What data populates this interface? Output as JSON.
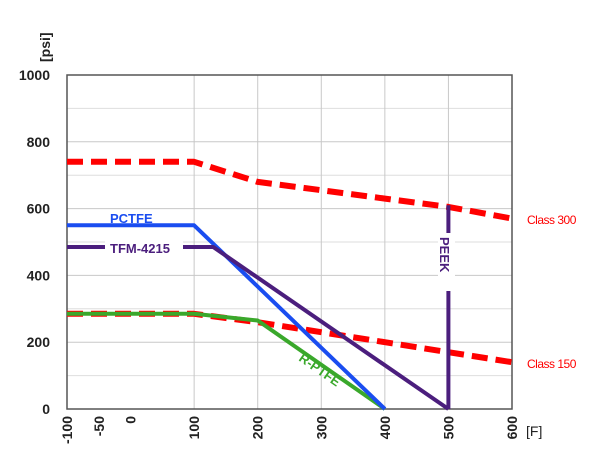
{
  "chart_data": {
    "type": "line",
    "title": "",
    "xlabel": "[F]",
    "ylabel": "[psi]",
    "xlim": [
      -100,
      600
    ],
    "ylim": [
      0,
      1000
    ],
    "x_ticks": [
      "-100",
      "-50",
      "0",
      "100",
      "200",
      "300",
      "400",
      "500",
      "600"
    ],
    "y_ticks": [
      "0",
      "200",
      "400",
      "600",
      "800",
      "1000"
    ],
    "grid": true,
    "series": [
      {
        "name": "Class 300",
        "color": "#ff0000",
        "style": "dashed",
        "points": [
          [
            -100,
            740
          ],
          [
            100,
            740
          ],
          [
            200,
            680
          ],
          [
            300,
            655
          ],
          [
            400,
            630
          ],
          [
            500,
            605
          ],
          [
            600,
            570
          ]
        ]
      },
      {
        "name": "Class 150",
        "color": "#ff0000",
        "style": "dashed",
        "points": [
          [
            -100,
            285
          ],
          [
            100,
            285
          ],
          [
            200,
            260
          ],
          [
            300,
            230
          ],
          [
            400,
            200
          ],
          [
            500,
            170
          ],
          [
            600,
            140
          ]
        ]
      },
      {
        "name": "PCTFE",
        "color": "#1a4df0",
        "style": "solid",
        "points": [
          [
            -100,
            550
          ],
          [
            100,
            550
          ],
          [
            400,
            0
          ]
        ]
      },
      {
        "name": "TFM-4215",
        "color": "#4b1e7d",
        "style": "solid",
        "points": [
          [
            -100,
            485
          ],
          [
            130,
            485
          ],
          [
            500,
            0
          ]
        ]
      },
      {
        "name": "R-PTFE",
        "color": "#3aa82b",
        "style": "solid",
        "points": [
          [
            -100,
            285
          ],
          [
            100,
            285
          ],
          [
            200,
            265
          ],
          [
            400,
            0
          ]
        ]
      },
      {
        "name": "PEEK",
        "color": "#4b1e7d",
        "style": "solid",
        "points": [
          [
            500,
            0
          ],
          [
            500,
            610
          ]
        ]
      }
    ]
  }
}
